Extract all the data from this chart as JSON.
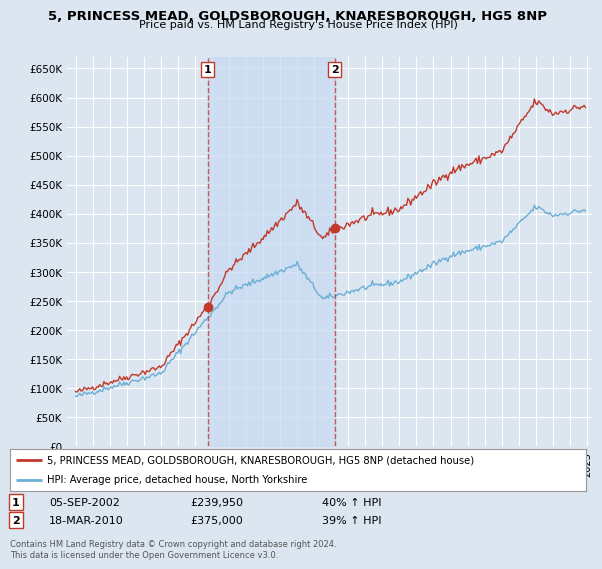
{
  "title": "5, PRINCESS MEAD, GOLDSBOROUGH, KNARESBOROUGH, HG5 8NP",
  "subtitle": "Price paid vs. HM Land Registry's House Price Index (HPI)",
  "ylim": [
    0,
    670000
  ],
  "yticks": [
    0,
    50000,
    100000,
    150000,
    200000,
    250000,
    300000,
    350000,
    400000,
    450000,
    500000,
    550000,
    600000,
    650000
  ],
  "ytick_labels": [
    "£0",
    "£50K",
    "£100K",
    "£150K",
    "£200K",
    "£250K",
    "£300K",
    "£350K",
    "£400K",
    "£450K",
    "£500K",
    "£550K",
    "£600K",
    "£650K"
  ],
  "bg_color": "#dce6f1",
  "plot_bg_color": "#dce6f1",
  "grid_color": "#ffffff",
  "red_line_color": "#c0392b",
  "blue_line_color": "#6baed6",
  "marker_color": "#c0392b",
  "vline_color": "#c0392b",
  "fill_color": "#c6d9f1",
  "legend_box_color": "#ffffff",
  "sale1_x": 2002.75,
  "sale1_y": 239950,
  "sale2_x": 2010.21,
  "sale2_y": 375000,
  "sale1_date": "05-SEP-2002",
  "sale1_price": "£239,950",
  "sale1_hpi": "40% ↑ HPI",
  "sale2_date": "18-MAR-2010",
  "sale2_price": "£375,000",
  "sale2_hpi": "39% ↑ HPI",
  "footer": "Contains HM Land Registry data © Crown copyright and database right 2024.\nThis data is licensed under the Open Government Licence v3.0.",
  "legend_line1": "5, PRINCESS MEAD, GOLDSBOROUGH, KNARESBOROUGH, HG5 8NP (detached house)",
  "legend_line2": "HPI: Average price, detached house, North Yorkshire",
  "xmin": 1994.5,
  "xmax": 2025.3
}
